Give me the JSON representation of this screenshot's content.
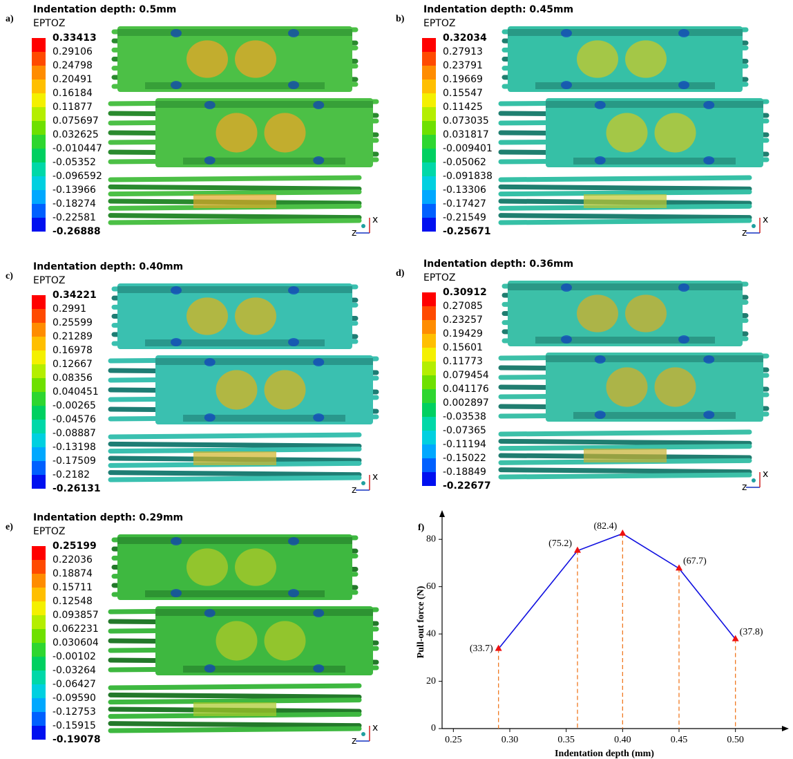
{
  "triad": {
    "horizontal": "z",
    "vertical": "x"
  },
  "panels": [
    {
      "label": "a)",
      "title": "Indentation depth: 0.5mm",
      "variable": "EPTOZ",
      "legend": [
        "0.33413",
        "0.29106",
        "0.24798",
        "0.20491",
        "0.16184",
        "0.11877",
        "0.075697",
        "0.032625",
        "-0.010447",
        "-0.05352",
        "-0.096592",
        "-0.13966",
        "-0.18274",
        "-0.22581",
        "-0.26888"
      ]
    },
    {
      "label": "b)",
      "title": "Indentation depth: 0.45mm",
      "variable": "EPTOZ",
      "legend": [
        "0.32034",
        "0.27913",
        "0.23791",
        "0.19669",
        "0.15547",
        "0.11425",
        "0.073035",
        "0.031817",
        "-0.009401",
        "-0.05062",
        "-0.091838",
        "-0.13306",
        "-0.17427",
        "-0.21549",
        "-0.25671"
      ]
    },
    {
      "label": "c)",
      "title": "Indentation depth: 0.40mm",
      "variable": "EPTOZ",
      "legend": [
        "0.34221",
        "0.2991",
        "0.25599",
        "0.21289",
        "0.16978",
        "0.12667",
        "0.08356",
        "0.040451",
        "-0.00265",
        "-0.04576",
        "-0.08887",
        "-0.13198",
        "-0.17509",
        "-0.2182",
        "-0.26131"
      ]
    },
    {
      "label": "d)",
      "title": "Indentation depth: 0.36mm",
      "variable": "EPTOZ",
      "legend": [
        "0.30912",
        "0.27085",
        "0.23257",
        "0.19429",
        "0.15601",
        "0.11773",
        "0.079454",
        "0.041176",
        "0.002897",
        "-0.03538",
        "-0.07365",
        "-0.11194",
        "-0.15022",
        "-0.18849",
        "-0.22677"
      ]
    },
    {
      "label": "e)",
      "title": "Indentation depth: 0.29mm",
      "variable": "EPTOZ",
      "legend": [
        "0.25199",
        "0.22036",
        "0.18874",
        "0.15711",
        "0.12548",
        "0.093857",
        "0.062231",
        "0.030604",
        "-0.00102",
        "-0.03264",
        "-0.06427",
        "-0.09590",
        "-0.12753",
        "-0.15915",
        "-0.19078"
      ]
    }
  ],
  "chart_data": {
    "type": "line",
    "panel_label": "f)",
    "x_label": "Indentation depth (mm)",
    "y_label": "Pull-out force (N)",
    "x": [
      0.29,
      0.36,
      0.4,
      0.45,
      0.5
    ],
    "values": [
      33.7,
      75.2,
      82.4,
      67.7,
      37.8
    ],
    "value_labels": [
      "(33.7)",
      "(75.2)",
      "(82.4)",
      "(67.7)",
      "(37.8)"
    ],
    "color": "#1010e0",
    "marker_color": "#ee1111",
    "drop_line_color": "#f07820",
    "xlim": [
      0.24,
      0.54
    ],
    "ylim": [
      0,
      90
    ],
    "xticks": [
      0.25,
      {
        "value": 0.3,
        "label": "0.30"
      },
      0.35,
      {
        "value": 0.4,
        "label": "0.40"
      },
      0.45,
      {
        "value": 0.5,
        "label": "0.50"
      }
    ],
    "yticks": [
      0,
      20,
      40,
      60,
      80
    ]
  }
}
